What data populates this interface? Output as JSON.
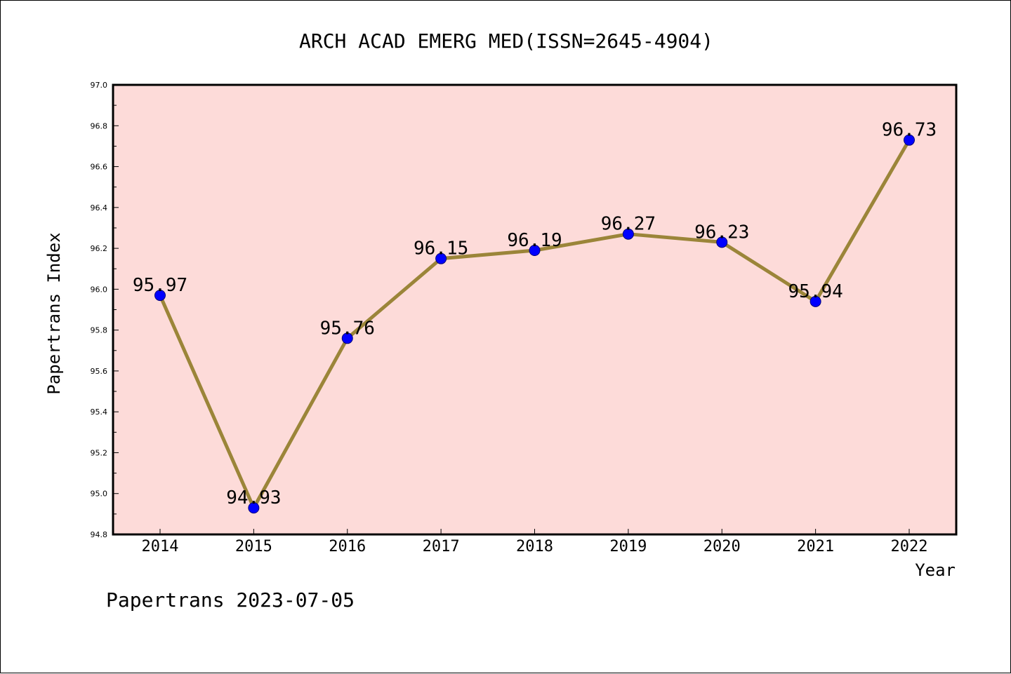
{
  "chart_data": {
    "type": "line",
    "title": "ARCH ACAD EMERG MED(ISSN=2645-4904)",
    "xlabel": "Year",
    "ylabel": "Papertrans Index",
    "categories": [
      "2014",
      "2015",
      "2016",
      "2017",
      "2018",
      "2019",
      "2020",
      "2021",
      "2022"
    ],
    "values": [
      95.97,
      94.93,
      95.76,
      96.15,
      96.19,
      96.27,
      96.23,
      95.94,
      96.73
    ],
    "data_labels": [
      "95.97",
      "94.93",
      "95.76",
      "96.15",
      "96.19",
      "96.27",
      "96.23",
      "95.94",
      "96.73"
    ],
    "ylim": [
      94.8,
      97.0
    ],
    "yticks": [
      "94.8",
      "95.0",
      "95.2",
      "95.4",
      "95.6",
      "95.8",
      "96.0",
      "96.2",
      "96.4",
      "96.6",
      "96.8",
      "97.0"
    ],
    "grid": false,
    "line_color": "#9b8539",
    "marker_color": "#0000ff",
    "plot_background": "#fddbd9"
  },
  "footer": "Papertrans 2023-07-05"
}
